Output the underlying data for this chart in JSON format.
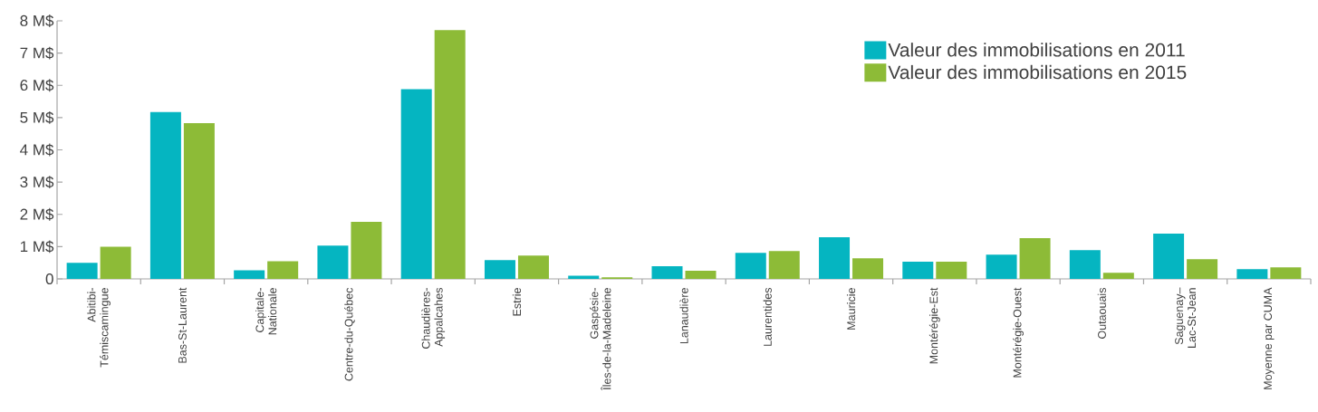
{
  "chart_data": {
    "type": "bar",
    "categories": [
      "Abitibi-\nTémiscamingue",
      "Bas-St-Laurent",
      "Capitale-\nNationale",
      "Centre-du-Québec",
      "Chaudières-\nAppalcahes",
      "Estrie",
      "Gaspésie-\nÎles-de-la-Madeleine",
      "Lanaudière",
      "Laurentides",
      "Mauricie",
      "Montérégie-Est",
      "Montérégie-Ouest",
      "Outaouais",
      "Saguenay–\nLac-St-Jean",
      "Moyenne par CUMA"
    ],
    "series": [
      {
        "name": "Valeur des immobilisations en 2011",
        "color": "#05b5c1",
        "values": [
          0.5,
          5.17,
          0.27,
          1.03,
          5.88,
          0.58,
          0.1,
          0.39,
          0.81,
          1.29,
          0.53,
          0.75,
          0.89,
          1.4,
          0.3
        ]
      },
      {
        "name": "Valeur des immobilisations en 2015",
        "color": "#8dbb37",
        "values": [
          1.0,
          4.83,
          0.55,
          1.77,
          7.71,
          0.72,
          0.05,
          0.25,
          0.86,
          0.64,
          0.53,
          1.26,
          0.19,
          0.61,
          0.36
        ]
      }
    ],
    "ylim": [
      0,
      8
    ],
    "yticks": [
      0,
      {
        "value": 1,
        "label": "1 M$"
      },
      {
        "value": 2,
        "label": "2 M$"
      },
      {
        "value": 3,
        "label": "3 M$"
      },
      {
        "value": 4,
        "label": "4 M$"
      },
      {
        "value": 5,
        "label": "5 M$"
      },
      {
        "value": 6,
        "label": "6 M$"
      },
      {
        "value": 7,
        "label": "7 M$"
      },
      {
        "value": 8,
        "label": "8 M$"
      }
    ],
    "legend": "top right"
  }
}
